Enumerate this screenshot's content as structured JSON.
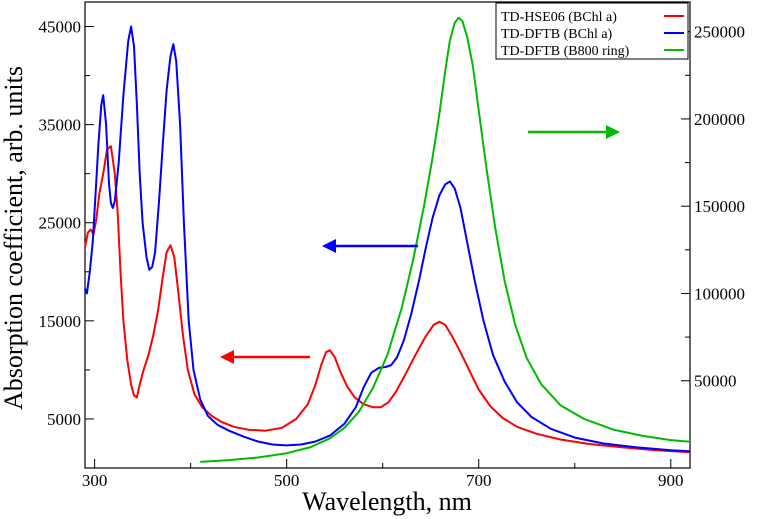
{
  "chart_data": {
    "type": "line",
    "xlabel": "Wavelength, nm",
    "ylabel": "Absorption coefficient, arb. units",
    "xlim": [
      290,
      920
    ],
    "ylim_left": [
      0,
      47500
    ],
    "ylim_right": [
      0,
      267000
    ],
    "x_ticks": [
      300,
      500,
      700,
      900
    ],
    "y_ticks_left": [
      5000,
      15000,
      25000,
      35000,
      45000
    ],
    "y_ticks_right": [
      50000,
      100000,
      150000,
      200000,
      250000
    ],
    "grid": false,
    "legend_position": "top-right",
    "series": [
      {
        "name": "TD-HSE06 (BChl a)",
        "axis": "left",
        "color": "#ff0000",
        "points": [
          [
            290,
            22500
          ],
          [
            293,
            24000
          ],
          [
            296,
            24300
          ],
          [
            299,
            23800
          ],
          [
            302,
            25500
          ],
          [
            305,
            28000
          ],
          [
            309,
            30000
          ],
          [
            313,
            32500
          ],
          [
            317,
            32800
          ],
          [
            321,
            30000
          ],
          [
            324,
            26000
          ],
          [
            327,
            20000
          ],
          [
            330,
            15000
          ],
          [
            334,
            11000
          ],
          [
            338,
            8500
          ],
          [
            341,
            7400
          ],
          [
            344,
            7200
          ],
          [
            347,
            8500
          ],
          [
            351,
            10000
          ],
          [
            356,
            11500
          ],
          [
            361,
            13500
          ],
          [
            366,
            16000
          ],
          [
            371,
            19500
          ],
          [
            375,
            22000
          ],
          [
            379,
            22700
          ],
          [
            383,
            21500
          ],
          [
            387,
            18000
          ],
          [
            392,
            13500
          ],
          [
            397,
            10000
          ],
          [
            404,
            7500
          ],
          [
            412,
            6200
          ],
          [
            422,
            5300
          ],
          [
            432,
            4700
          ],
          [
            445,
            4200
          ],
          [
            460,
            3900
          ],
          [
            478,
            3800
          ],
          [
            495,
            4100
          ],
          [
            510,
            5000
          ],
          [
            522,
            6500
          ],
          [
            530,
            8500
          ],
          [
            536,
            10500
          ],
          [
            541,
            11800
          ],
          [
            545,
            12000
          ],
          [
            550,
            11300
          ],
          [
            556,
            9800
          ],
          [
            563,
            8300
          ],
          [
            571,
            7200
          ],
          [
            580,
            6500
          ],
          [
            590,
            6200
          ],
          [
            598,
            6200
          ],
          [
            606,
            6700
          ],
          [
            614,
            7800
          ],
          [
            624,
            9600
          ],
          [
            634,
            11500
          ],
          [
            644,
            13300
          ],
          [
            653,
            14600
          ],
          [
            659,
            14900
          ],
          [
            665,
            14600
          ],
          [
            672,
            13500
          ],
          [
            680,
            12000
          ],
          [
            690,
            10000
          ],
          [
            700,
            8000
          ],
          [
            712,
            6300
          ],
          [
            725,
            5100
          ],
          [
            740,
            4200
          ],
          [
            760,
            3500
          ],
          [
            785,
            2900
          ],
          [
            815,
            2450
          ],
          [
            850,
            2100
          ],
          [
            885,
            1800
          ],
          [
            920,
            1600
          ]
        ]
      },
      {
        "name": "TD-DFTB (BChl a)",
        "axis": "left",
        "color": "#0000ff",
        "points": [
          [
            290,
            18300
          ],
          [
            292,
            17800
          ],
          [
            295,
            20000
          ],
          [
            298,
            23000
          ],
          [
            301,
            28000
          ],
          [
            304,
            33000
          ],
          [
            307,
            37000
          ],
          [
            309,
            38000
          ],
          [
            312,
            35000
          ],
          [
            315,
            29000
          ],
          [
            317,
            27000
          ],
          [
            319,
            26500
          ],
          [
            321,
            27200
          ],
          [
            325,
            31000
          ],
          [
            330,
            38000
          ],
          [
            335,
            43500
          ],
          [
            338,
            45000
          ],
          [
            341,
            43000
          ],
          [
            344,
            37000
          ],
          [
            347,
            30000
          ],
          [
            350,
            25000
          ],
          [
            354,
            21500
          ],
          [
            357,
            20200
          ],
          [
            360,
            20500
          ],
          [
            363,
            22000
          ],
          [
            367,
            27000
          ],
          [
            371,
            33000
          ],
          [
            375,
            38500
          ],
          [
            379,
            42000
          ],
          [
            382,
            43200
          ],
          [
            385,
            41500
          ],
          [
            389,
            35000
          ],
          [
            393,
            25000
          ],
          [
            398,
            15000
          ],
          [
            403,
            10000
          ],
          [
            410,
            7000
          ],
          [
            418,
            5300
          ],
          [
            428,
            4400
          ],
          [
            440,
            3800
          ],
          [
            455,
            3200
          ],
          [
            470,
            2700
          ],
          [
            485,
            2400
          ],
          [
            500,
            2300
          ],
          [
            515,
            2400
          ],
          [
            530,
            2700
          ],
          [
            545,
            3300
          ],
          [
            560,
            4500
          ],
          [
            572,
            6200
          ],
          [
            580,
            8200
          ],
          [
            588,
            9700
          ],
          [
            596,
            10200
          ],
          [
            603,
            10300
          ],
          [
            609,
            10500
          ],
          [
            615,
            11300
          ],
          [
            622,
            13000
          ],
          [
            630,
            15800
          ],
          [
            638,
            19200
          ],
          [
            645,
            22500
          ],
          [
            652,
            25500
          ],
          [
            659,
            27800
          ],
          [
            665,
            28900
          ],
          [
            670,
            29200
          ],
          [
            675,
            28500
          ],
          [
            681,
            26500
          ],
          [
            688,
            23000
          ],
          [
            696,
            19000
          ],
          [
            705,
            15000
          ],
          [
            715,
            11500
          ],
          [
            727,
            8800
          ],
          [
            740,
            6700
          ],
          [
            755,
            5200
          ],
          [
            775,
            4000
          ],
          [
            800,
            3100
          ],
          [
            830,
            2500
          ],
          [
            865,
            2100
          ],
          [
            900,
            1800
          ],
          [
            920,
            1700
          ]
        ]
      },
      {
        "name": "TD-DFTB (B800 ring)",
        "axis": "right",
        "color": "#00bb00",
        "points": [
          [
            410,
            3500
          ],
          [
            440,
            4500
          ],
          [
            470,
            6000
          ],
          [
            500,
            8500
          ],
          [
            525,
            12000
          ],
          [
            545,
            17000
          ],
          [
            560,
            23000
          ],
          [
            575,
            32000
          ],
          [
            590,
            46000
          ],
          [
            605,
            65000
          ],
          [
            620,
            92000
          ],
          [
            632,
            120000
          ],
          [
            643,
            150000
          ],
          [
            652,
            178000
          ],
          [
            659,
            203000
          ],
          [
            665,
            227000
          ],
          [
            670,
            245000
          ],
          [
            675,
            255000
          ],
          [
            679,
            258000
          ],
          [
            683,
            256000
          ],
          [
            688,
            247000
          ],
          [
            694,
            230000
          ],
          [
            700,
            205000
          ],
          [
            708,
            172000
          ],
          [
            717,
            138000
          ],
          [
            727,
            107000
          ],
          [
            738,
            82000
          ],
          [
            750,
            63000
          ],
          [
            765,
            48000
          ],
          [
            785,
            36000
          ],
          [
            810,
            28000
          ],
          [
            840,
            22000
          ],
          [
            870,
            18500
          ],
          [
            900,
            16000
          ],
          [
            920,
            15000
          ]
        ]
      }
    ],
    "annotations": [
      {
        "name": "red-arrow",
        "direction": "left",
        "color": "#ff0000"
      },
      {
        "name": "blue-arrow",
        "direction": "left",
        "color": "#0000ff"
      },
      {
        "name": "green-arrow",
        "direction": "right",
        "color": "#00bb00"
      }
    ]
  }
}
